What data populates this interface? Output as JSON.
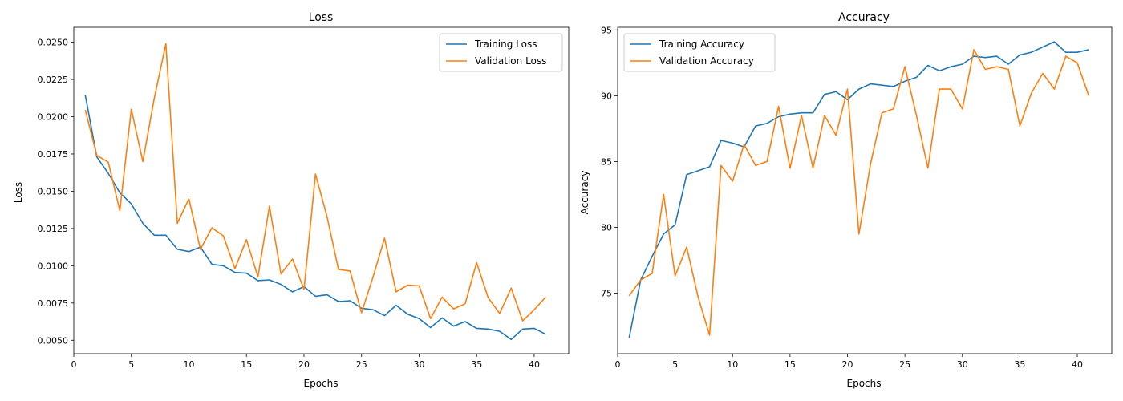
{
  "chart_data": [
    {
      "type": "line",
      "title": "Loss",
      "xlabel": "Epochs",
      "ylabel": "Loss",
      "xlim": [
        -0.0,
        43.0
      ],
      "ylim": [
        0.0041,
        0.026
      ],
      "xticks": [
        0,
        5,
        10,
        15,
        20,
        25,
        30,
        35,
        40
      ],
      "yticks": [
        0.005,
        0.0075,
        0.01,
        0.0125,
        0.015,
        0.0175,
        0.02,
        0.0225,
        0.025
      ],
      "ytick_labels": [
        "0.0050",
        "0.0075",
        "0.0100",
        "0.0125",
        "0.0150",
        "0.0175",
        "0.0200",
        "0.0225",
        "0.0250"
      ],
      "legend": "top-right",
      "grid": false,
      "x": [
        1,
        2,
        3,
        4,
        5,
        6,
        7,
        8,
        9,
        10,
        11,
        12,
        13,
        14,
        15,
        16,
        17,
        18,
        19,
        20,
        21,
        22,
        23,
        24,
        25,
        26,
        27,
        28,
        29,
        30,
        31,
        32,
        33,
        34,
        35,
        36,
        37,
        38,
        39,
        40,
        41
      ],
      "series": [
        {
          "name": "Training Loss",
          "color": "#1f77b4",
          "values": [
            0.02145,
            0.0173,
            0.0162,
            0.0149,
            0.01415,
            0.01285,
            0.01205,
            0.01205,
            0.0111,
            0.01095,
            0.01125,
            0.0101,
            0.01,
            0.00955,
            0.0095,
            0.009,
            0.00905,
            0.00875,
            0.00825,
            0.0086,
            0.00795,
            0.00805,
            0.0076,
            0.00765,
            0.00715,
            0.00705,
            0.00665,
            0.00735,
            0.00675,
            0.00645,
            0.00585,
            0.0065,
            0.00595,
            0.00625,
            0.0058,
            0.00575,
            0.0056,
            0.00505,
            0.00575,
            0.0058,
            0.0054
          ]
        },
        {
          "name": "Validation Loss",
          "color": "#ff7f0e",
          "values": [
            0.02045,
            0.0174,
            0.01695,
            0.0137,
            0.0205,
            0.017,
            0.02125,
            0.0249,
            0.01285,
            0.0145,
            0.0111,
            0.01255,
            0.012,
            0.0098,
            0.01175,
            0.00925,
            0.014,
            0.00945,
            0.01045,
            0.0084,
            0.01615,
            0.0133,
            0.00975,
            0.00965,
            0.00685,
            0.00925,
            0.01185,
            0.00825,
            0.0087,
            0.00865,
            0.00645,
            0.0079,
            0.0071,
            0.00745,
            0.0102,
            0.00785,
            0.0068,
            0.0085,
            0.0063,
            0.00705,
            0.0079
          ]
        }
      ]
    },
    {
      "type": "line",
      "title": "Accuracy",
      "xlabel": "Epochs",
      "ylabel": "Accuracy",
      "xlim": [
        -0.0,
        43.0
      ],
      "ylim": [
        70.4,
        95.2
      ],
      "xticks": [
        0,
        5,
        10,
        15,
        20,
        25,
        30,
        35,
        40
      ],
      "yticks": [
        75,
        80,
        85,
        90,
        95
      ],
      "ytick_labels": [
        "75",
        "80",
        "85",
        "90",
        "95"
      ],
      "legend": "top-left",
      "grid": false,
      "x": [
        1,
        2,
        3,
        4,
        5,
        6,
        7,
        8,
        9,
        10,
        11,
        12,
        13,
        14,
        15,
        16,
        17,
        18,
        19,
        20,
        21,
        22,
        23,
        24,
        25,
        26,
        27,
        28,
        29,
        30,
        31,
        32,
        33,
        34,
        35,
        36,
        37,
        38,
        39,
        40,
        41
      ],
      "series": [
        {
          "name": "Training Accuracy",
          "color": "#1f77b4",
          "values": [
            71.6,
            76.0,
            77.8,
            79.5,
            80.2,
            84.0,
            84.3,
            84.6,
            86.6,
            86.4,
            86.1,
            87.7,
            87.9,
            88.4,
            88.6,
            88.7,
            88.7,
            90.1,
            90.3,
            89.7,
            90.5,
            90.9,
            90.8,
            90.7,
            91.1,
            91.4,
            92.3,
            91.9,
            92.2,
            92.4,
            93.0,
            92.9,
            93.0,
            92.4,
            93.1,
            93.3,
            93.7,
            94.1,
            93.3,
            93.3,
            93.5
          ]
        },
        {
          "name": "Validation Accuracy",
          "color": "#ff7f0e",
          "values": [
            74.8,
            76.0,
            76.5,
            82.5,
            76.3,
            78.5,
            74.7,
            71.8,
            84.7,
            83.5,
            86.3,
            84.7,
            85.0,
            89.2,
            84.5,
            88.5,
            84.5,
            88.5,
            87.0,
            90.5,
            79.5,
            84.8,
            88.7,
            89.0,
            92.2,
            88.5,
            84.5,
            90.5,
            90.5,
            89.0,
            93.5,
            92.0,
            92.2,
            92.0,
            87.7,
            90.2,
            91.7,
            90.5,
            93.0,
            92.5,
            90.0
          ]
        }
      ]
    }
  ]
}
